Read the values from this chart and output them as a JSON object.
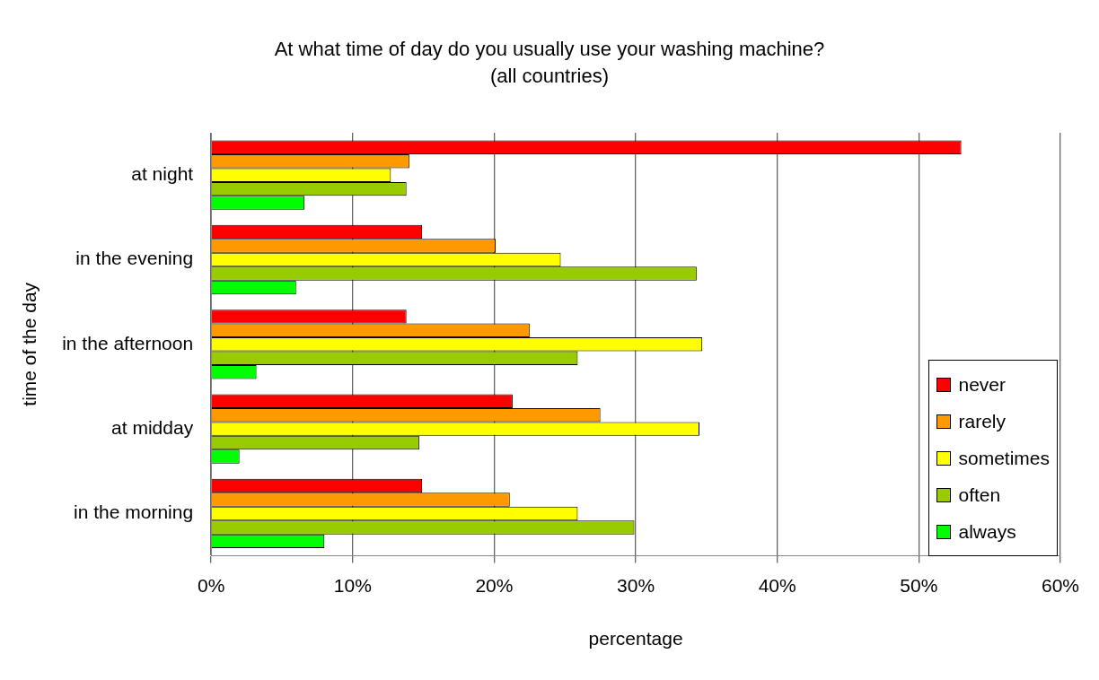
{
  "chart_data": {
    "type": "bar",
    "orientation": "horizontal",
    "title": "At what time of day do you usually use your washing machine?",
    "subtitle": "(all countries)",
    "xlabel": "percentage",
    "ylabel": "time of the day",
    "categories": [
      "at night",
      "in the evening",
      "in the afternoon",
      "at midday",
      "in the morning"
    ],
    "series": [
      {
        "name": "never",
        "color": "#ff0000",
        "values": [
          53.0,
          14.9,
          13.8,
          21.3,
          14.9
        ]
      },
      {
        "name": "rarely",
        "color": "#ff9900",
        "values": [
          14.0,
          20.1,
          22.5,
          27.5,
          21.1
        ]
      },
      {
        "name": "sometimes",
        "color": "#ffff00",
        "values": [
          12.7,
          24.7,
          34.7,
          34.5,
          25.9
        ]
      },
      {
        "name": "often",
        "color": "#99cc00",
        "values": [
          13.8,
          34.3,
          25.9,
          14.7,
          29.9
        ]
      },
      {
        "name": "always",
        "color": "#00ff00",
        "values": [
          6.6,
          6.0,
          3.2,
          2.0,
          8.0
        ]
      }
    ],
    "xlim": [
      0,
      60
    ],
    "xticks": [
      {
        "value": 0,
        "label": "0%"
      },
      {
        "value": 10,
        "label": "10%"
      },
      {
        "value": 20,
        "label": "20%"
      },
      {
        "value": 30,
        "label": "30%"
      },
      {
        "value": 40,
        "label": "40%"
      },
      {
        "value": 50,
        "label": "50%"
      },
      {
        "value": 60,
        "label": "60%"
      }
    ],
    "grid": "x",
    "legend": "bottom right"
  }
}
